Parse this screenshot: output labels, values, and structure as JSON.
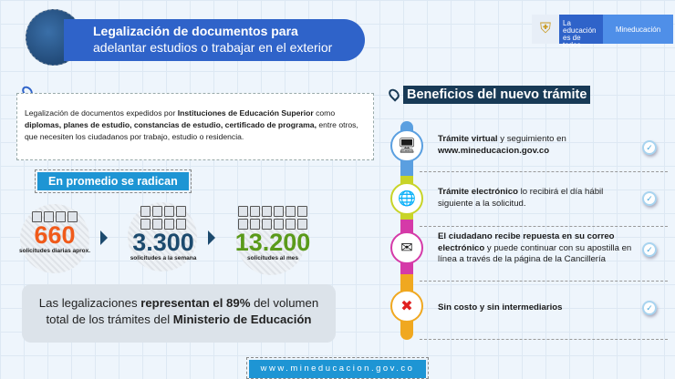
{
  "header": {
    "title_bold": "Legalización de documentos para",
    "title_rest": "adelantar estudios o trabajar en el exterior"
  },
  "logo": {
    "slogan": "La educación es de todos",
    "brand": "Mineducación"
  },
  "description": {
    "p1": "Legalización de documentos expedidos por ",
    "b1": "Instituciones de Educación Superior",
    "p2": " como ",
    "b2": "diplomas, planes de estudio, constancias de estudio, certificado de programa,",
    "p3": " entre otros, que necesiten los ciudadanos por trabajo, estudio o residencia."
  },
  "stats": {
    "heading": "En promedio se radican",
    "items": [
      {
        "value": "660",
        "label": "solicitudes diarias aprox.",
        "color": "#f05a1a"
      },
      {
        "value": "3.300",
        "label": "solicitudes a la semana",
        "color": "#1c4a6e"
      },
      {
        "value": "13.200",
        "label": "solicitudes al mes",
        "color": "#5a9a1a"
      }
    ]
  },
  "note": {
    "p1": "Las legalizaciones ",
    "b1": "representan el 89%",
    "p2": " del volumen total de los trámites del ",
    "b2": "Ministerio de Educación"
  },
  "footer": {
    "url": "www.mineducacion.gov.co"
  },
  "benefits": {
    "title": "Beneficios del nuevo trámite",
    "items": [
      {
        "bold": "Trámite virtual",
        "text": " y seguimiento en",
        "bold2": "www.mineducacion.gov.co",
        "icon": "browser-icon"
      },
      {
        "bold": "Trámite electrónico",
        "text": " lo recibirá el día hábil siguiente a la solicitud.",
        "icon": "globe-location-icon"
      },
      {
        "bold": "El ciudadano recibe repuesta en su correo electrónico",
        "text": " y puede continuar con su apostilla en línea a través de la página de la Cancillería",
        "icon": "email-icon"
      },
      {
        "bold": "Sin costo y sin intermediarios",
        "text": "",
        "icon": "no-money-icon"
      }
    ]
  }
}
